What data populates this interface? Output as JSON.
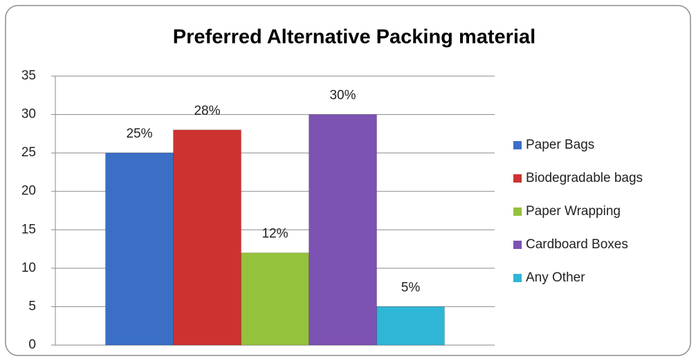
{
  "chart_data": {
    "type": "bar",
    "title": "Preferred Alternative Packing material",
    "categories": [
      null
    ],
    "series": [
      {
        "name": "Paper Bags",
        "color": "#3b6fc6",
        "values": [
          25
        ],
        "value_labels": [
          "25%"
        ]
      },
      {
        "name": "Biodegradable bags",
        "color": "#cc3330",
        "values": [
          28
        ],
        "value_labels": [
          "28%"
        ]
      },
      {
        "name": "Paper Wrapping",
        "color": "#94c23c",
        "values": [
          12
        ],
        "value_labels": [
          "12%"
        ]
      },
      {
        "name": "Cardboard Boxes",
        "color": "#7c52b2",
        "values": [
          30
        ],
        "value_labels": [
          "30%"
        ]
      },
      {
        "name": "Any Other",
        "color": "#2fb6d6",
        "values": [
          5
        ],
        "value_labels": [
          "5%"
        ]
      }
    ],
    "ylim": [
      0,
      35
    ],
    "yticks": [
      0,
      5,
      10,
      15,
      20,
      25,
      30,
      35
    ],
    "grid": true,
    "legend": "right"
  }
}
